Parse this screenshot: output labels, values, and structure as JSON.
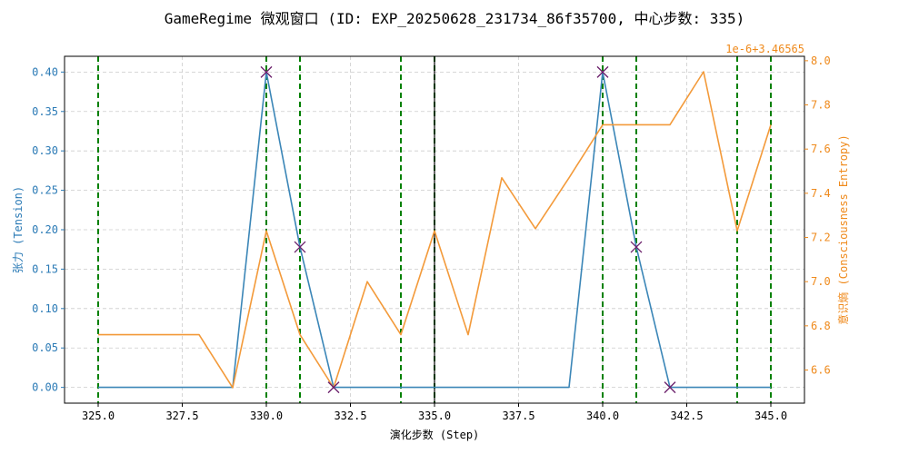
{
  "chart_data": {
    "type": "line",
    "title": "GameRegime 微观窗口 (ID: EXP_20250628_231734_86f35700, 中心步数: 335)",
    "xlabel": "演化步数 (Step)",
    "ylabel_left": "张力 (Tension)",
    "ylabel_right": "意识熵 (Consciousness Entropy)",
    "right_offset_label": "1e-6+3.46565",
    "xlim": [
      324,
      346
    ],
    "ylim_left": [
      -0.02,
      0.42
    ],
    "ylim_right": [
      6.45,
      8.02
    ],
    "x_ticks": [
      325,
      327.5,
      330,
      332.5,
      335,
      337.5,
      340,
      342.5,
      345
    ],
    "x_tick_labels": [
      "325.0",
      "327.5",
      "330.0",
      "332.5",
      "335.0",
      "337.5",
      "340.0",
      "342.5",
      "345.0"
    ],
    "y_left_ticks": [
      0,
      0.05,
      0.1,
      0.15,
      0.2,
      0.25,
      0.3,
      0.35,
      0.4
    ],
    "y_left_tick_labels": [
      "0.00",
      "0.05",
      "0.10",
      "0.15",
      "0.20",
      "0.25",
      "0.30",
      "0.35",
      "0.40"
    ],
    "y_right_ticks": [
      6.6,
      6.8,
      7.0,
      7.2,
      7.4,
      7.6,
      7.8,
      8.0
    ],
    "y_right_tick_labels": [
      "6.6",
      "6.8",
      "7.0",
      "7.2",
      "7.4",
      "7.6",
      "7.8",
      "8.0"
    ],
    "grid": true,
    "x": [
      325,
      326,
      327,
      328,
      329,
      330,
      331,
      332,
      333,
      334,
      335,
      336,
      337,
      338,
      339,
      340,
      341,
      342,
      343,
      344,
      345
    ],
    "series": [
      {
        "axis": "left",
        "color": "#3b86b7",
        "values": [
          0,
          0,
          0,
          0,
          0,
          0.4,
          0.178,
          0,
          0,
          0,
          0,
          0,
          0,
          0,
          0,
          0.4,
          0.178,
          0,
          0,
          0,
          0
        ]
      },
      {
        "axis": "right",
        "color": "#f39a3a",
        "values": [
          6.76,
          6.76,
          6.76,
          6.76,
          6.52,
          7.23,
          6.76,
          6.52,
          7.0,
          6.76,
          7.23,
          6.76,
          7.47,
          7.24,
          7.47,
          7.71,
          7.71,
          7.71,
          7.95,
          7.23,
          7.71
        ]
      }
    ],
    "markers": {
      "symbol": "x",
      "color": "#6b1f6b",
      "points": [
        {
          "x": 330,
          "y": 0.4
        },
        {
          "x": 331,
          "y": 0.178
        },
        {
          "x": 332,
          "y": 0
        },
        {
          "x": 340,
          "y": 0.4
        },
        {
          "x": 341,
          "y": 0.178
        },
        {
          "x": 342,
          "y": 0
        }
      ]
    },
    "vlines_green": [
      325,
      330,
      331,
      334,
      335,
      340,
      341,
      344,
      345
    ],
    "vline_center": 335,
    "colors": {
      "left_axis": "#2c7bb6",
      "right_axis": "#ef8a1c",
      "vline": "#008000",
      "grid": "#cccccc"
    }
  }
}
